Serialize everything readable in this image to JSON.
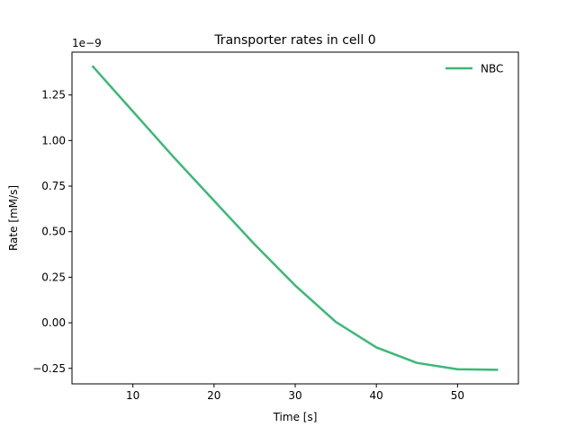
{
  "chart_data": {
    "type": "line",
    "title": "Transporter rates in cell 0",
    "xlabel": "Time [s]",
    "ylabel": "Rate [mM/s]",
    "y_offset_label": "1e−9",
    "xlim": [
      2.5,
      57.5
    ],
    "ylim": [
      -0.335,
      1.485
    ],
    "x_ticks": [
      10,
      20,
      30,
      40,
      50
    ],
    "x_tick_labels": [
      "10",
      "20",
      "30",
      "40",
      "50"
    ],
    "y_ticks": [
      -0.25,
      0.0,
      0.25,
      0.5,
      0.75,
      1.0,
      1.25
    ],
    "y_tick_labels": [
      "−0.25",
      "0.00",
      "0.25",
      "0.50",
      "0.75",
      "1.00",
      "1.25"
    ],
    "grid": false,
    "legend_position": "top-right",
    "series": [
      {
        "name": "NBC",
        "color": "#3bb878",
        "x": [
          5,
          10,
          15,
          20,
          25,
          30,
          35,
          40,
          45,
          50,
          55
        ],
        "y": [
          1.41,
          1.16,
          0.91,
          0.67,
          0.43,
          0.205,
          0.005,
          -0.135,
          -0.22,
          -0.255,
          -0.258
        ]
      }
    ]
  }
}
